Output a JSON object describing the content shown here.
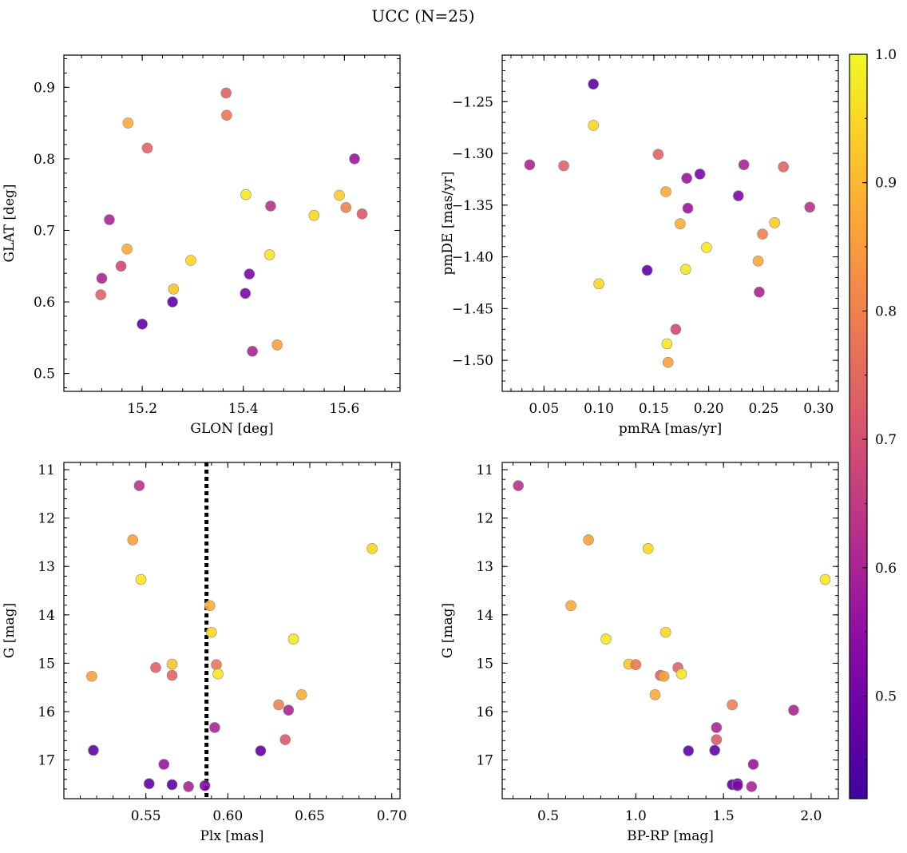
{
  "figure": {
    "title": "UCC (N=25)"
  },
  "colorbar": {
    "min": 0.42,
    "max": 1.0,
    "colormap": "plasma",
    "ticks": [
      0.5,
      0.6,
      0.7,
      0.8,
      0.9,
      1.0
    ],
    "tick_labels": [
      "0.5",
      "0.6",
      "0.7",
      "0.8",
      "0.9",
      "1.0"
    ]
  },
  "chart_data": [
    {
      "type": "scatter",
      "title": "",
      "xlabel": "GLON [deg]",
      "ylabel": "GLAT [deg]",
      "xlim": [
        15.045,
        15.71
      ],
      "ylim": [
        0.475,
        0.945
      ],
      "y_inverted": false,
      "xticks": [
        15.2,
        15.4,
        15.6
      ],
      "xtick_labels": [
        "15.2",
        "15.4",
        "15.6"
      ],
      "yticks": [
        0.5,
        0.6,
        0.7,
        0.8,
        0.9
      ],
      "ytick_labels": [
        "0.5",
        "0.6",
        "0.7",
        "0.8",
        "0.9"
      ],
      "x": [
        15.118,
        15.12,
        15.135,
        15.158,
        15.17,
        15.172,
        15.2,
        15.21,
        15.26,
        15.262,
        15.296,
        15.366,
        15.367,
        15.404,
        15.405,
        15.412,
        15.418,
        15.452,
        15.454,
        15.467,
        15.54,
        15.59,
        15.603,
        15.62,
        15.635
      ],
      "y": [
        0.61,
        0.633,
        0.715,
        0.65,
        0.674,
        0.85,
        0.569,
        0.815,
        0.6,
        0.618,
        0.658,
        0.892,
        0.861,
        0.612,
        0.75,
        0.639,
        0.531,
        0.666,
        0.734,
        0.54,
        0.721,
        0.749,
        0.732,
        0.8,
        0.723
      ],
      "c": [
        0.74,
        0.6,
        0.6,
        0.68,
        0.88,
        0.88,
        0.47,
        0.74,
        0.47,
        0.92,
        0.95,
        0.74,
        0.78,
        0.52,
        0.97,
        0.52,
        0.6,
        0.97,
        0.63,
        0.86,
        0.95,
        0.93,
        0.8,
        0.57,
        0.72
      ]
    },
    {
      "type": "scatter",
      "title": "",
      "xlabel": "pmRA [mas/yr]",
      "ylabel": "pmDE [mas/yr]",
      "xlim": [
        0.012,
        0.318
      ],
      "ylim": [
        -1.53,
        -1.205
      ],
      "y_inverted": false,
      "xticks": [
        0.05,
        0.1,
        0.15,
        0.2,
        0.25,
        0.3
      ],
      "xtick_labels": [
        "0.05",
        "0.10",
        "0.15",
        "0.20",
        "0.25",
        "0.30"
      ],
      "yticks": [
        -1.5,
        -1.45,
        -1.4,
        -1.35,
        -1.3,
        -1.25
      ],
      "ytick_labels": [
        "−1.50",
        "−1.45",
        "−1.40",
        "−1.35",
        "−1.30",
        "−1.25"
      ],
      "x": [
        0.037,
        0.068,
        0.095,
        0.095,
        0.1,
        0.144,
        0.154,
        0.161,
        0.162,
        0.163,
        0.17,
        0.174,
        0.179,
        0.18,
        0.181,
        0.192,
        0.198,
        0.227,
        0.232,
        0.245,
        0.246,
        0.249,
        0.26,
        0.268,
        0.292
      ],
      "y": [
        -1.311,
        -1.312,
        -1.233,
        -1.273,
        -1.426,
        -1.413,
        -1.301,
        -1.337,
        -1.484,
        -1.502,
        -1.47,
        -1.368,
        -1.412,
        -1.324,
        -1.353,
        -1.32,
        -1.391,
        -1.341,
        -1.311,
        -1.404,
        -1.434,
        -1.378,
        -1.367,
        -1.313,
        -1.352
      ],
      "c": [
        0.6,
        0.74,
        0.47,
        0.95,
        0.95,
        0.47,
        0.74,
        0.88,
        0.97,
        0.86,
        0.68,
        0.88,
        0.97,
        0.57,
        0.57,
        0.52,
        0.97,
        0.52,
        0.6,
        0.88,
        0.6,
        0.8,
        0.93,
        0.74,
        0.63
      ]
    },
    {
      "type": "scatter",
      "title": "",
      "xlabel": "Plx [mas]",
      "ylabel": "G [mag]",
      "xlim": [
        0.5,
        0.705
      ],
      "ylim": [
        10.85,
        17.8
      ],
      "y_inverted": true,
      "xticks": [
        0.55,
        0.6,
        0.65,
        0.7
      ],
      "xtick_labels": [
        "0.55",
        "0.60",
        "0.65",
        "0.70"
      ],
      "yticks": [
        11,
        12,
        13,
        14,
        15,
        16,
        17
      ],
      "ytick_labels": [
        "11",
        "12",
        "13",
        "14",
        "15",
        "16",
        "17"
      ],
      "vline": {
        "x": 0.587,
        "style": "dotted"
      },
      "x": [
        0.517,
        0.518,
        0.542,
        0.546,
        0.547,
        0.552,
        0.556,
        0.561,
        0.566,
        0.566,
        0.566,
        0.576,
        0.586,
        0.589,
        0.59,
        0.592,
        0.593,
        0.594,
        0.62,
        0.631,
        0.635,
        0.637,
        0.64,
        0.645,
        0.688
      ],
      "y": [
        15.27,
        16.8,
        12.45,
        11.33,
        13.27,
        17.49,
        15.09,
        17.09,
        15.02,
        15.25,
        17.51,
        17.55,
        17.53,
        13.81,
        14.36,
        16.33,
        15.03,
        15.22,
        16.81,
        15.86,
        16.58,
        15.97,
        14.5,
        15.65,
        12.63
      ],
      "c": [
        0.86,
        0.47,
        0.86,
        0.63,
        0.97,
        0.47,
        0.74,
        0.57,
        0.92,
        0.74,
        0.47,
        0.6,
        0.52,
        0.88,
        0.95,
        0.6,
        0.78,
        0.97,
        0.47,
        0.8,
        0.72,
        0.6,
        0.97,
        0.88,
        0.95
      ]
    },
    {
      "type": "scatter",
      "title": "",
      "xlabel": "BP-RP [mag]",
      "ylabel": "G [mag]",
      "xlim": [
        0.238,
        2.155
      ],
      "ylim": [
        10.85,
        17.8
      ],
      "y_inverted": true,
      "xticks": [
        0.5,
        1.0,
        1.5,
        2.0
      ],
      "xtick_labels": [
        "0.5",
        "1.0",
        "1.5",
        "2.0"
      ],
      "yticks": [
        11,
        12,
        13,
        14,
        15,
        16,
        17
      ],
      "ytick_labels": [
        "11",
        "12",
        "13",
        "14",
        "15",
        "16",
        "17"
      ],
      "x": [
        0.33,
        0.73,
        0.63,
        1.07,
        0.83,
        2.08,
        0.96,
        1.0,
        1.14,
        1.16,
        1.24,
        1.26,
        1.11,
        1.55,
        1.9,
        1.46,
        1.46,
        1.3,
        1.45,
        1.67,
        1.55,
        1.58,
        1.58,
        1.66,
        1.17
      ],
      "y": [
        11.33,
        12.45,
        13.81,
        12.63,
        14.5,
        13.27,
        15.02,
        15.03,
        15.25,
        15.27,
        15.09,
        15.22,
        15.65,
        15.86,
        15.97,
        16.33,
        16.58,
        16.81,
        16.8,
        17.09,
        17.51,
        17.49,
        17.53,
        17.55,
        14.36
      ],
      "c": [
        0.63,
        0.86,
        0.88,
        0.95,
        0.97,
        0.97,
        0.92,
        0.78,
        0.74,
        0.86,
        0.74,
        0.97,
        0.88,
        0.8,
        0.6,
        0.6,
        0.72,
        0.47,
        0.47,
        0.57,
        0.47,
        0.47,
        0.52,
        0.6,
        0.95
      ]
    }
  ]
}
